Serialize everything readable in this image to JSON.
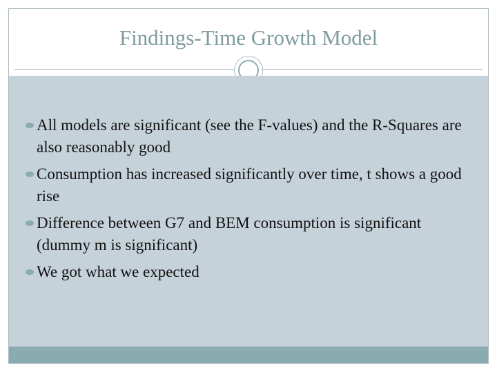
{
  "title": "Findings-Time Growth Model",
  "bullets": [
    "All models are significant (see the F-values) and the R-Squares are also reasonably good",
    "Consumption has increased significantly over time, t shows a good rise",
    "Difference between G7 and BEM consumption is significant (dummy m is significant)",
    "We got what we expected"
  ]
}
